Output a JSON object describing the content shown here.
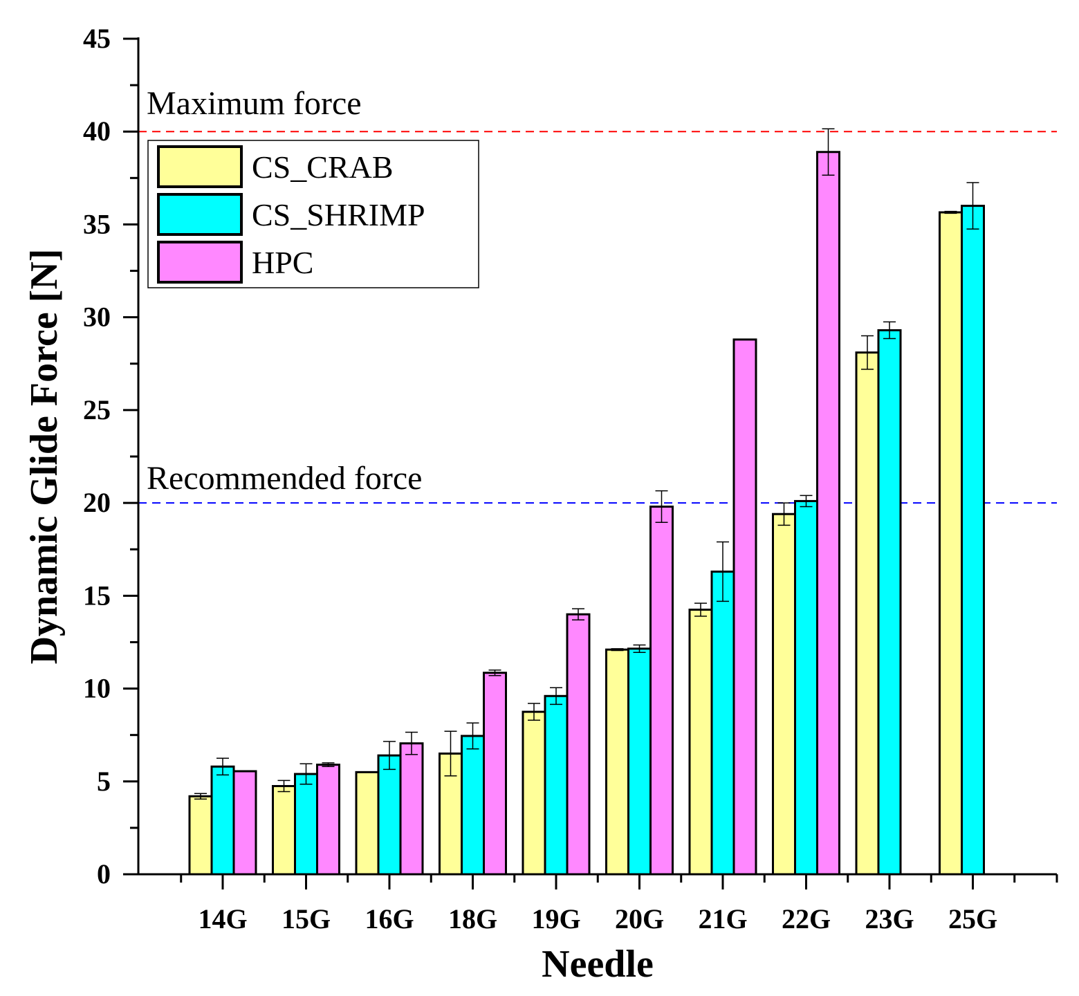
{
  "chart_data": {
    "type": "bar",
    "title": "",
    "xlabel": "Needle",
    "ylabel": "Dynamic Glide Force [N]",
    "ylim": [
      0,
      45
    ],
    "yticks": [
      0,
      5,
      10,
      15,
      20,
      25,
      30,
      35,
      40,
      45
    ],
    "categories": [
      "14G",
      "15G",
      "16G",
      "18G",
      "19G",
      "20G",
      "21G",
      "22G",
      "23G",
      "25G"
    ],
    "series": [
      {
        "name": "CS_CRAB",
        "color": "#ffff99",
        "values": [
          4.2,
          4.75,
          5.5,
          6.5,
          8.75,
          12.1,
          14.25,
          19.4,
          28.1,
          35.65
        ],
        "errors": [
          0.15,
          0.3,
          0.0,
          1.2,
          0.45,
          0.05,
          0.35,
          0.6,
          0.9,
          0.05
        ]
      },
      {
        "name": "CS_SHRIMP",
        "color": "#00ffff",
        "values": [
          5.8,
          5.4,
          6.4,
          7.45,
          9.6,
          12.15,
          16.3,
          20.1,
          29.3,
          36.0
        ],
        "errors": [
          0.45,
          0.55,
          0.75,
          0.7,
          0.45,
          0.2,
          1.6,
          0.3,
          0.45,
          1.25
        ]
      },
      {
        "name": "HPC",
        "color": "#ff88ff",
        "values": [
          5.55,
          5.9,
          7.05,
          10.85,
          14.0,
          19.8,
          28.8,
          38.9,
          null,
          null
        ],
        "errors": [
          0.0,
          0.1,
          0.6,
          0.15,
          0.3,
          0.85,
          0.0,
          1.25,
          null,
          null
        ]
      }
    ],
    "reference_lines": [
      {
        "label": "Maximum force",
        "value": 40,
        "color": "#ff0000"
      },
      {
        "label": "Recommended force",
        "value": 20,
        "color": "#0000ff"
      }
    ],
    "legend_position": "top-left"
  }
}
